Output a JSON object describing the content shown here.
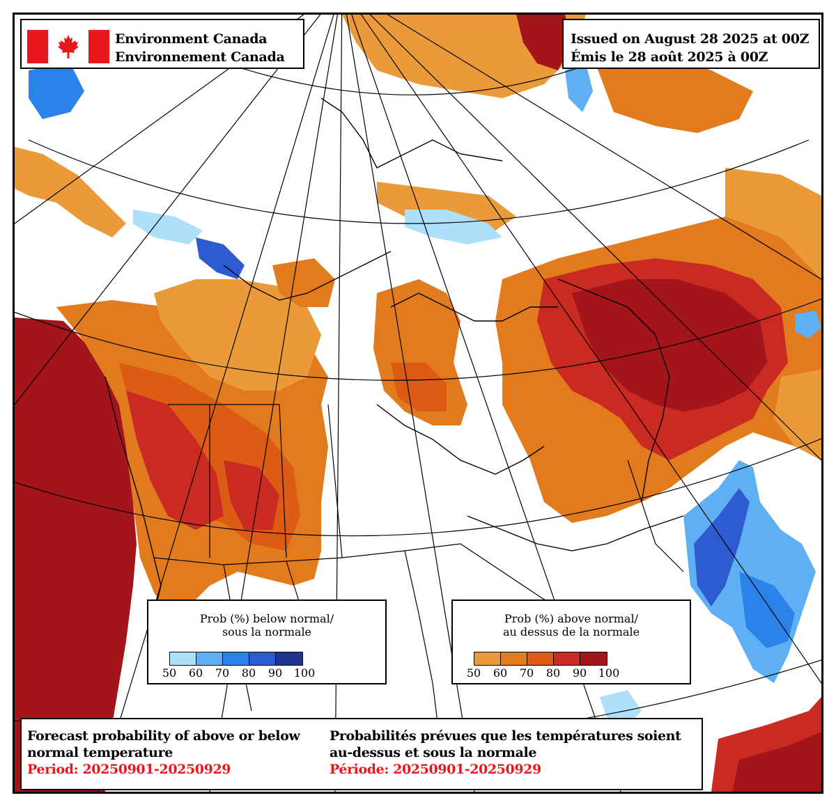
{
  "header": {
    "org_en": "Environment Canada",
    "org_fr": "Environnement Canada",
    "flag_colors": {
      "red": "#e8171d",
      "white": "#ffffff"
    },
    "flag_icon": "canada-flag-icon"
  },
  "issued": {
    "en": "Issued on August 28 2025 at 00Z",
    "fr": "Émis le 28 août 2025 à 00Z"
  },
  "legend_below": {
    "title_line1": "Prob (%) below normal/",
    "title_line2": "sous la normale",
    "colors": [
      "#aee0fb",
      "#5fb0f2",
      "#2b82e8",
      "#2f5bd0",
      "#1f3590"
    ],
    "ticks": [
      "50",
      "60",
      "70",
      "80",
      "90",
      "100"
    ]
  },
  "legend_above": {
    "title_line1": "Prob (%) above normal/",
    "title_line2": "au dessus de la normale",
    "colors": [
      "#eb9a3a",
      "#e27a1e",
      "#dc5b15",
      "#c92a22",
      "#a3151a"
    ],
    "ticks": [
      "50",
      "60",
      "70",
      "80",
      "90",
      "100"
    ]
  },
  "footer": {
    "title_en_line1": "Forecast probability of above or below",
    "title_en_line2": "normal temperature",
    "period_en": "Period: 20250901-20250929",
    "title_fr_line1": "Probabilités prévues que les températures soient",
    "title_fr_line2": "au-dessus et sous la normale",
    "period_fr": "Période: 20250901-20250929"
  },
  "map": {
    "background": "#ffffff",
    "line_color": "#000000",
    "above_normal_colors": [
      "#eb9a3a",
      "#e27a1e",
      "#dc5b15",
      "#c92a22",
      "#a3151a"
    ],
    "below_normal_colors": [
      "#aee0fb",
      "#5fb0f2",
      "#2b82e8",
      "#2f5bd0",
      "#1f3590"
    ]
  }
}
